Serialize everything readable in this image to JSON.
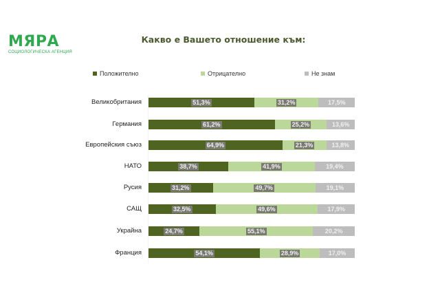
{
  "logo": {
    "name": "МЯРА",
    "subtitle": "Социологическа агенция"
  },
  "colors": {
    "positive": "#4e6420",
    "negative": "#bcd79a",
    "dontknow": "#bdbdbd",
    "label_box": "#7a7a72"
  },
  "chart_data": {
    "type": "bar",
    "orientation": "horizontal",
    "stacked": true,
    "title": "Какво е Вашето отношение към:",
    "xlabel": "",
    "ylabel": "",
    "legend_position": "top",
    "grid": false,
    "categories": [
      "Великобритания",
      "Германия",
      "Европейския съюз",
      "НАТО",
      "Русия",
      "САЩ",
      "Украйна",
      "Франция"
    ],
    "series": [
      {
        "name": "Положително",
        "color": "#4e6420",
        "values": [
          51.3,
          61.2,
          64.9,
          38.7,
          31.2,
          32.5,
          24.7,
          54.1
        ],
        "labels": [
          "51,3%",
          "61,2%",
          "64,9%",
          "38,7%",
          "31,2%",
          "32,5%",
          "24,7%",
          "54,1%"
        ]
      },
      {
        "name": "Отрицателно",
        "color": "#bcd79a",
        "values": [
          31.2,
          25.2,
          21.3,
          41.9,
          49.7,
          49.6,
          55.1,
          28.9
        ],
        "labels": [
          "31,2%",
          "25,2%",
          "21,3%",
          "41,9%",
          "49,7%",
          "49,6%",
          "55,1%",
          "28,9%"
        ]
      },
      {
        "name": "Не знам",
        "color": "#bdbdbd",
        "values": [
          17.5,
          13.6,
          13.8,
          19.4,
          19.1,
          17.9,
          20.2,
          17.0
        ],
        "labels": [
          "17,5%",
          "13,6%",
          "13,8%",
          "19,4%",
          "19,1%",
          "17,9%",
          "20,2%",
          "17,0%"
        ]
      }
    ],
    "xlim": [
      0,
      100
    ]
  }
}
